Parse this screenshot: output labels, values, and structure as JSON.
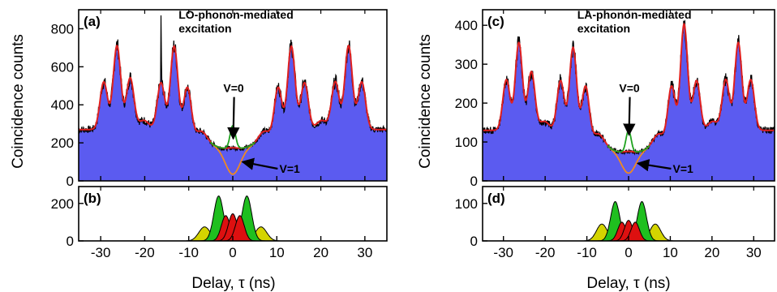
{
  "chart_data": [
    {
      "id": "a",
      "type": "area",
      "panel_label": "(a)",
      "annotation": [
        "LO-phonon-mediated",
        "excitation"
      ],
      "ylabel": "Coincidence counts",
      "xlabel": "",
      "xlim": [
        -35,
        35
      ],
      "ylim": [
        0,
        900
      ],
      "yticks": [
        0,
        200,
        400,
        600,
        800
      ],
      "xticks": [
        -30,
        -20,
        -10,
        0,
        10,
        20,
        30
      ],
      "show_xtick_labels": false,
      "markers": [
        {
          "label": "V=0",
          "x": 0,
          "y": 205
        },
        {
          "label": "V=1",
          "x": 0,
          "y": 100
        }
      ],
      "model": {
        "baseline": 270,
        "valley": 165,
        "center_floor": 180,
        "peaks": [
          {
            "x": -29.3,
            "y": 520
          },
          {
            "x": -26.3,
            "y": 710
          },
          {
            "x": -23.3,
            "y": 540
          },
          {
            "x": -16.3,
            "y": 520
          },
          {
            "x": -13.3,
            "y": 720
          },
          {
            "x": -10.3,
            "y": 520
          },
          {
            "x": 10.3,
            "y": 520
          },
          {
            "x": 13.3,
            "y": 720
          },
          {
            "x": 16.3,
            "y": 520
          },
          {
            "x": 23.3,
            "y": 520
          },
          {
            "x": 26.3,
            "y": 710
          },
          {
            "x": 29.3,
            "y": 520
          }
        ],
        "spike": {
          "x": -16.3,
          "y": 870
        },
        "v0_peak": 290,
        "v1_min": 35
      },
      "series": []
    },
    {
      "id": "b",
      "type": "area",
      "panel_label": "(b)",
      "ylabel": "",
      "xlabel": "",
      "xlim": [
        -35,
        35
      ],
      "ylim": [
        0,
        290
      ],
      "yticks": [
        0,
        200
      ],
      "xticks": [
        -30,
        -20,
        -10,
        0,
        10,
        20,
        30
      ],
      "show_xtick_labels": false,
      "colors": {
        "outer": "#d4d400",
        "middle": "#1fbf1f",
        "center": "#dd1010"
      },
      "peaks": {
        "outer": [
          {
            "x": -6.4,
            "y": 75
          },
          {
            "x": 6.4,
            "y": 75
          }
        ],
        "middle": [
          {
            "x": -3.2,
            "y": 240
          },
          {
            "x": 3.2,
            "y": 240
          }
        ],
        "center": [
          {
            "x": -1.6,
            "y": 135
          },
          {
            "x": 0,
            "y": 145
          },
          {
            "x": 1.6,
            "y": 135
          }
        ]
      }
    },
    {
      "id": "c",
      "type": "area",
      "panel_label": "(c)",
      "annotation": [
        "LA-phonon-mediated",
        "excitation"
      ],
      "ylabel": "",
      "xlabel": "",
      "xlim": [
        -35,
        35
      ],
      "ylim": [
        0,
        440
      ],
      "yticks": [
        0,
        100,
        200,
        300,
        400
      ],
      "xticks": [
        -30,
        -20,
        -10,
        0,
        10,
        20,
        30
      ],
      "show_xtick_labels": false,
      "markers": [
        {
          "label": "V=0",
          "x": 0,
          "y": 110
        },
        {
          "label": "V=1",
          "x": 0,
          "y": 45
        }
      ],
      "model": {
        "baseline": 130,
        "valley": 70,
        "center_floor": 80,
        "peaks": [
          {
            "x": -29.3,
            "y": 260
          },
          {
            "x": -26.3,
            "y": 355
          },
          {
            "x": -23.3,
            "y": 280
          },
          {
            "x": -16.3,
            "y": 260
          },
          {
            "x": -13.3,
            "y": 350
          },
          {
            "x": -10.3,
            "y": 260
          },
          {
            "x": 10.3,
            "y": 260
          },
          {
            "x": 13.3,
            "y": 410
          },
          {
            "x": 16.3,
            "y": 260
          },
          {
            "x": 23.3,
            "y": 260
          },
          {
            "x": 26.3,
            "y": 355
          },
          {
            "x": 29.3,
            "y": 260
          }
        ],
        "v0_peak": 130,
        "v1_min": 20
      },
      "series": []
    },
    {
      "id": "d",
      "type": "area",
      "panel_label": "(d)",
      "ylabel": "",
      "xlabel": "",
      "xlim": [
        -35,
        35
      ],
      "ylim": [
        0,
        145
      ],
      "yticks": [
        0,
        100
      ],
      "xticks": [
        -30,
        -20,
        -10,
        0,
        10,
        20,
        30
      ],
      "show_xtick_labels": false,
      "colors": {
        "outer": "#d4d400",
        "middle": "#1fbf1f",
        "center": "#dd1010"
      },
      "peaks": {
        "outer": [
          {
            "x": -6.4,
            "y": 45
          },
          {
            "x": 6.4,
            "y": 45
          }
        ],
        "middle": [
          {
            "x": -3.2,
            "y": 105
          },
          {
            "x": 3.2,
            "y": 105
          }
        ],
        "center": [
          {
            "x": -1.6,
            "y": 50
          },
          {
            "x": 0,
            "y": 55
          },
          {
            "x": 1.6,
            "y": 50
          }
        ]
      }
    }
  ],
  "bottom_axis": {
    "tick_labels": [
      "-30",
      "-20",
      "-10",
      "0",
      "10",
      "20",
      "30"
    ],
    "xlabel_left": "Delay, τ (ns)",
    "xlabel_right": "Delay, τ (ns)"
  },
  "colors": {
    "fill": "#5b5bf0",
    "measured": "#000000",
    "fit": "#e02020",
    "v0_curve": "#1fa21f",
    "v1_curve": "#f08a20"
  }
}
